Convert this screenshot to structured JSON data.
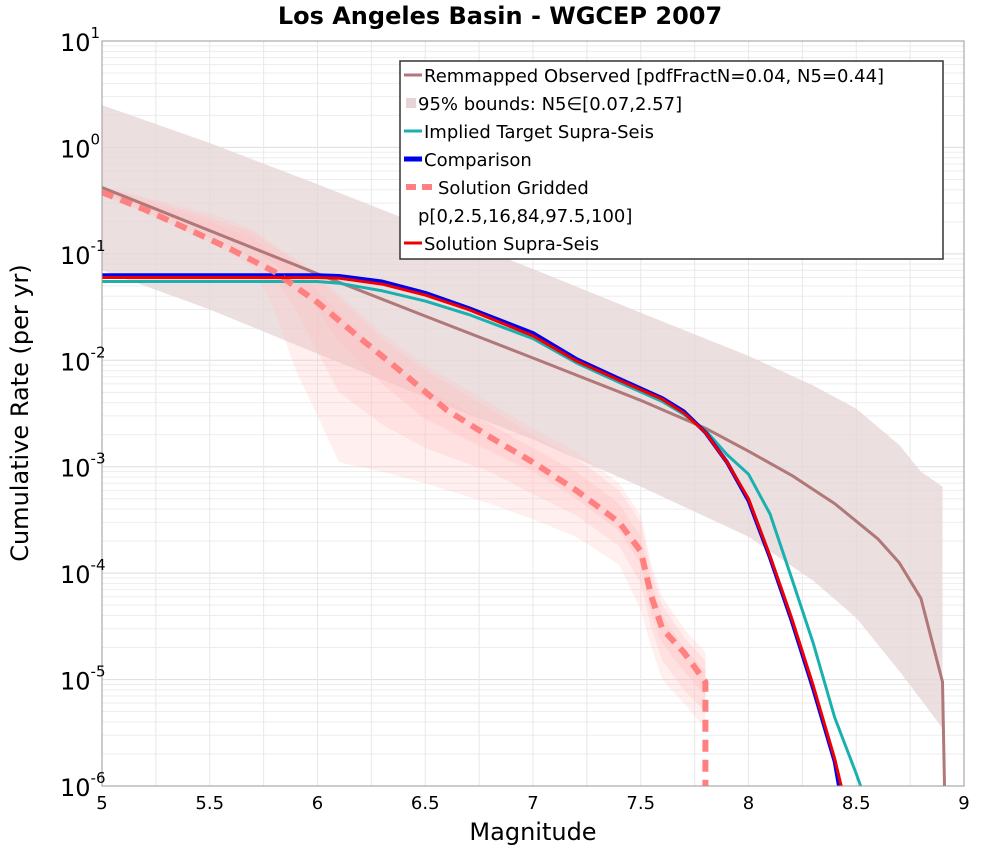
{
  "chart_data": {
    "type": "line",
    "title": "Los Angeles Basin - WGCEP 2007",
    "xlabel": "Magnitude",
    "ylabel": "Cumulative Rate (per yr)",
    "xlim": [
      5,
      9
    ],
    "ylim": [
      1e-06,
      10
    ],
    "yscale": "log",
    "grid": true,
    "legend_placement": "top-right",
    "x_ticks": [
      "5",
      "5.5",
      "6",
      "6.5",
      "7",
      "7.5",
      "8",
      "8.5",
      "9"
    ],
    "y_ticks": [
      {
        "base": "10",
        "exp": "1"
      },
      {
        "base": "10",
        "exp": "0"
      },
      {
        "base": "10",
        "exp": "-1"
      },
      {
        "base": "10",
        "exp": "-2"
      },
      {
        "base": "10",
        "exp": "-3"
      },
      {
        "base": "10",
        "exp": "-4"
      },
      {
        "base": "10",
        "exp": "-5"
      },
      {
        "base": "10",
        "exp": "-6"
      }
    ],
    "legend": [
      {
        "label": "Remmapped Observed [pdfFractN=0.04, N5=0.44]",
        "color": "#b07878",
        "style": "line"
      },
      {
        "label": "95% bounds: N5∈[0.07,2.57]",
        "color": "#e6d4d6",
        "style": "fill"
      },
      {
        "label": "Implied Target Supra-Seis",
        "color": "#1ab0b0",
        "style": "line"
      },
      {
        "label": "Comparison",
        "color": "#0000ee",
        "style": "thick"
      },
      {
        "label": "Solution Gridded",
        "color": "#ff8080",
        "style": "dashed"
      },
      {
        "label": "p[0,2.5,16,84,97.5,100]",
        "color": "#ffffff",
        "style": "none"
      },
      {
        "label": "Solution Supra-Seis",
        "color": "#ee0000",
        "style": "line"
      }
    ],
    "bounds_95": {
      "color": "#e6d4d6",
      "x": [
        5.0,
        5.5,
        6.0,
        6.5,
        7.0,
        7.5,
        8.0,
        8.3,
        8.5,
        8.7,
        8.8,
        8.9
      ],
      "upper": [
        2.5,
        1.1,
        0.45,
        0.18,
        0.072,
        0.028,
        0.011,
        0.0058,
        0.0035,
        0.0016,
        0.0009,
        0.00065
      ],
      "lower": [
        0.07,
        0.03,
        0.0115,
        0.0045,
        0.0018,
        0.00065,
        0.00022,
        8.5e-05,
        3.8e-05,
        1.2e-05,
        6.5e-06,
        3.5e-06
      ]
    },
    "gridded_bands": {
      "color": "#ffc0c0",
      "x": [
        5.0,
        5.2,
        5.5,
        5.7,
        5.8,
        5.9,
        6.0,
        6.1,
        6.3,
        6.5,
        6.8,
        7.0,
        7.2,
        7.4,
        7.5,
        7.55,
        7.6,
        7.7,
        7.8
      ],
      "p0": [
        0.36,
        0.24,
        0.13,
        0.075,
        0.03,
        0.008,
        0.003,
        0.0011,
        0.0009,
        0.0007,
        0.00045,
        0.00032,
        0.00022,
        0.00012,
        4.5e-05,
        2e-05,
        1e-05,
        6e-06,
        3.5e-06
      ],
      "p2_5": [
        0.37,
        0.25,
        0.14,
        0.09,
        0.06,
        0.03,
        0.012,
        0.005,
        0.0025,
        0.0015,
        0.0009,
        0.00055,
        0.00035,
        0.00018,
        8e-05,
        3e-05,
        1.5e-05,
        8e-06,
        5e-06
      ],
      "p16": [
        0.38,
        0.27,
        0.16,
        0.11,
        0.08,
        0.055,
        0.03,
        0.015,
        0.006,
        0.0028,
        0.0014,
        0.0009,
        0.0005,
        0.00025,
        0.00012,
        4e-05,
        2.2e-05,
        1.2e-05,
        7e-06
      ],
      "p84": [
        0.41,
        0.31,
        0.2,
        0.14,
        0.1,
        0.07,
        0.045,
        0.028,
        0.011,
        0.0055,
        0.0025,
        0.0015,
        0.0009,
        0.00045,
        0.00022,
        8e-05,
        4e-05,
        2e-05,
        1.2e-05
      ],
      "p97_5": [
        0.42,
        0.33,
        0.22,
        0.16,
        0.115,
        0.085,
        0.06,
        0.038,
        0.016,
        0.008,
        0.0035,
        0.002,
        0.0012,
        0.0006,
        0.0003,
        0.0001,
        5e-05,
        2.5e-05,
        1.5e-05
      ],
      "p100": [
        0.43,
        0.34,
        0.24,
        0.17,
        0.12,
        0.09,
        0.065,
        0.042,
        0.018,
        0.009,
        0.004,
        0.0023,
        0.0014,
        0.0007,
        0.00035,
        0.00012,
        6e-05,
        3e-05,
        1.8e-05
      ]
    },
    "series": [
      {
        "name": "Remmapped Observed [pdfFractN=0.04, N5=0.44]",
        "color": "#b07878",
        "width": 3,
        "dash": "",
        "x": [
          5.0,
          5.5,
          6.0,
          6.5,
          7.0,
          7.5,
          7.8,
          8.0,
          8.2,
          8.4,
          8.6,
          8.7,
          8.8,
          8.9,
          8.91
        ],
        "y": [
          0.42,
          0.165,
          0.065,
          0.026,
          0.0105,
          0.0042,
          0.0023,
          0.0014,
          0.00083,
          0.00045,
          0.00021,
          0.000125,
          5.8e-05,
          9.5e-06,
          9e-07
        ]
      },
      {
        "name": "Implied Target Supra-Seis",
        "color": "#1ab0b0",
        "width": 3,
        "dash": "",
        "x": [
          5.0,
          5.5,
          6.0,
          6.1,
          6.3,
          6.5,
          6.7,
          7.0,
          7.2,
          7.4,
          7.6,
          7.7,
          7.8,
          7.9,
          8.0,
          8.1,
          8.2,
          8.3,
          8.4,
          8.5,
          8.52
        ],
        "y": [
          0.055,
          0.055,
          0.055,
          0.053,
          0.045,
          0.036,
          0.027,
          0.016,
          0.0095,
          0.0062,
          0.0041,
          0.0031,
          0.0022,
          0.0013,
          0.00085,
          0.00036,
          9e-05,
          2.2e-05,
          4.4e-06,
          1.3e-06,
          1e-06
        ]
      },
      {
        "name": "Comparison",
        "color": "#0000ee",
        "width": 4,
        "dash": "",
        "x": [
          5.0,
          5.5,
          6.0,
          6.1,
          6.3,
          6.5,
          6.7,
          7.0,
          7.2,
          7.4,
          7.6,
          7.7,
          7.8,
          7.9,
          8.0,
          8.1,
          8.2,
          8.3,
          8.4,
          8.42
        ],
        "y": [
          0.063,
          0.063,
          0.063,
          0.062,
          0.055,
          0.043,
          0.031,
          0.018,
          0.0103,
          0.0067,
          0.0044,
          0.0033,
          0.0021,
          0.0011,
          0.00048,
          0.00014,
          3.6e-05,
          8.2e-06,
          1.7e-06,
          1e-06
        ]
      },
      {
        "name": "Solution Gridded",
        "color": "#ff8080",
        "width": 6,
        "dash": "12,8",
        "x": [
          5.0,
          5.2,
          5.4,
          5.6,
          5.8,
          6.0,
          6.2,
          6.4,
          6.6,
          6.8,
          7.0,
          7.2,
          7.4,
          7.5,
          7.55,
          7.6,
          7.7,
          7.8,
          7.8
        ],
        "y": [
          0.38,
          0.26,
          0.17,
          0.11,
          0.068,
          0.035,
          0.016,
          0.0075,
          0.0034,
          0.0019,
          0.0011,
          0.0006,
          0.0003,
          0.00016,
          6e-05,
          3e-05,
          1.8e-05,
          9.5e-06,
          1e-06
        ]
      },
      {
        "name": "Solution Supra-Seis",
        "color": "#ee0000",
        "width": 3,
        "dash": "",
        "x": [
          5.0,
          5.5,
          6.0,
          6.1,
          6.3,
          6.5,
          6.7,
          7.0,
          7.2,
          7.4,
          7.6,
          7.7,
          7.8,
          7.9,
          8.0,
          8.1,
          8.2,
          8.3,
          8.4,
          8.43
        ],
        "y": [
          0.06,
          0.06,
          0.06,
          0.059,
          0.052,
          0.041,
          0.03,
          0.017,
          0.0099,
          0.0065,
          0.0043,
          0.0032,
          0.0021,
          0.0011,
          0.0005,
          0.000145,
          3.8e-05,
          8.8e-06,
          1.8e-06,
          1e-06
        ]
      }
    ]
  }
}
